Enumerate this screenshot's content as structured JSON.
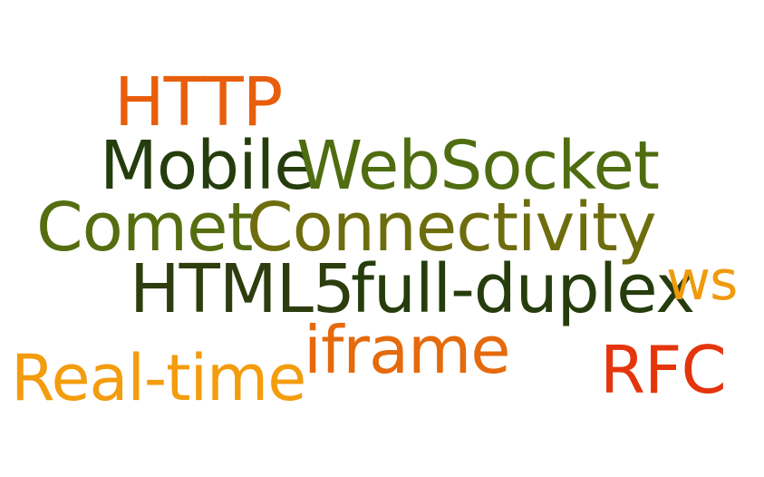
{
  "words": {
    "http": {
      "text": "HTTP",
      "color": "#e85e0c"
    },
    "mobile": {
      "text": "Mobile",
      "color": "#253d0c"
    },
    "websocket": {
      "text": "WebSocket",
      "color": "#4f6d10"
    },
    "comet": {
      "text": "Comet",
      "color": "#556d10"
    },
    "connectivity": {
      "text": "Connectivity",
      "color": "#6d6d0e"
    },
    "html5": {
      "text": "HTML5",
      "color": "#2d3d0e"
    },
    "full_duplex": {
      "text": "full-duplex",
      "color": "#253d0c"
    },
    "ws": {
      "text": "ws",
      "color": "#f09a0c"
    },
    "iframe": {
      "text": "iframe",
      "color": "#e56a0c"
    },
    "real_time": {
      "text": "Real-time",
      "color": "#f39c0d"
    },
    "rfc": {
      "text": "RFC",
      "color": "#e4350c"
    }
  }
}
